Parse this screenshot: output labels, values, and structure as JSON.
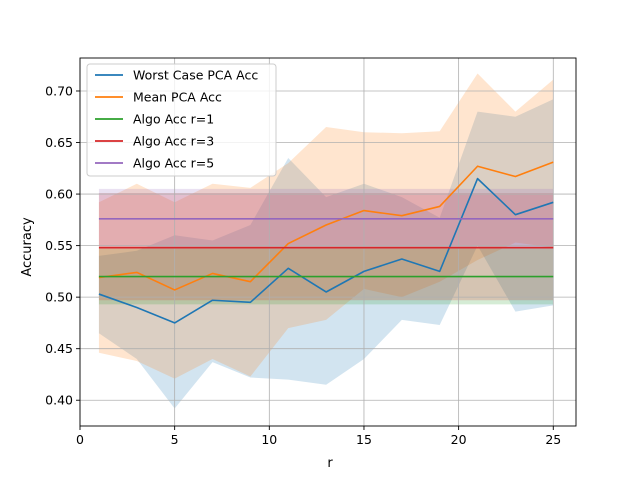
{
  "chart_data": {
    "type": "line",
    "xlabel": "r",
    "ylabel": "Accuracy",
    "xlim": [
      0,
      26.2
    ],
    "ylim": [
      0.375,
      0.732
    ],
    "xticks": [
      0,
      5,
      10,
      15,
      20,
      25
    ],
    "yticks": [
      0.4,
      0.45,
      0.5,
      0.55,
      0.6,
      0.65,
      0.7
    ],
    "grid": true,
    "legend_position": "top-left",
    "x": [
      1,
      3,
      5,
      7,
      9,
      11,
      13,
      15,
      17,
      19,
      21,
      23,
      25
    ],
    "series": [
      {
        "name": "Worst Case PCA Acc",
        "color": "#1f77b4",
        "values": [
          0.503,
          0.49,
          0.475,
          0.497,
          0.495,
          0.528,
          0.505,
          0.525,
          0.537,
          0.525,
          0.615,
          0.58,
          0.592
        ],
        "band_lower": [
          0.465,
          0.44,
          0.392,
          0.437,
          0.422,
          0.42,
          0.415,
          0.44,
          0.478,
          0.473,
          0.55,
          0.486,
          0.492
        ],
        "band_upper": [
          0.54,
          0.545,
          0.56,
          0.555,
          0.57,
          0.635,
          0.597,
          0.61,
          0.597,
          0.577,
          0.68,
          0.675,
          0.692
        ]
      },
      {
        "name": "Mean PCA Acc",
        "color": "#ff7f0e",
        "values": [
          0.519,
          0.524,
          0.507,
          0.523,
          0.515,
          0.552,
          0.57,
          0.584,
          0.579,
          0.588,
          0.627,
          0.617,
          0.631
        ],
        "band_lower": [
          0.446,
          0.438,
          0.421,
          0.44,
          0.423,
          0.47,
          0.478,
          0.508,
          0.5,
          0.515,
          0.536,
          0.553,
          0.548
        ],
        "band_upper": [
          0.592,
          0.61,
          0.592,
          0.61,
          0.606,
          0.63,
          0.665,
          0.66,
          0.659,
          0.661,
          0.717,
          0.68,
          0.711
        ]
      },
      {
        "name": "Algo Acc r=1",
        "color": "#2ca02c",
        "values": [
          0.52,
          0.52,
          0.52,
          0.52,
          0.52,
          0.52,
          0.52,
          0.52,
          0.52,
          0.52,
          0.52,
          0.52,
          0.52
        ],
        "band_lower": [
          0.493,
          0.493,
          0.493,
          0.493,
          0.493,
          0.493,
          0.493,
          0.493,
          0.493,
          0.493,
          0.493,
          0.493,
          0.493
        ],
        "band_upper": [
          0.547,
          0.547,
          0.547,
          0.547,
          0.547,
          0.547,
          0.547,
          0.547,
          0.547,
          0.547,
          0.547,
          0.547,
          0.547
        ]
      },
      {
        "name": "Algo Acc r=3",
        "color": "#d62728",
        "values": [
          0.548,
          0.548,
          0.548,
          0.548,
          0.548,
          0.548,
          0.548,
          0.548,
          0.548,
          0.548,
          0.548,
          0.548,
          0.548
        ],
        "band_lower": [
          0.497,
          0.497,
          0.497,
          0.497,
          0.497,
          0.497,
          0.497,
          0.497,
          0.497,
          0.497,
          0.497,
          0.497,
          0.497
        ],
        "band_upper": [
          0.601,
          0.601,
          0.601,
          0.601,
          0.601,
          0.601,
          0.601,
          0.601,
          0.601,
          0.601,
          0.601,
          0.601,
          0.601
        ]
      },
      {
        "name": "Algo Acc r=5",
        "color": "#9467bd",
        "values": [
          0.576,
          0.576,
          0.576,
          0.576,
          0.576,
          0.576,
          0.576,
          0.576,
          0.576,
          0.576,
          0.576,
          0.576,
          0.576
        ],
        "band_lower": [
          0.547,
          0.547,
          0.547,
          0.547,
          0.547,
          0.547,
          0.547,
          0.547,
          0.547,
          0.547,
          0.547,
          0.547,
          0.547
        ],
        "band_upper": [
          0.605,
          0.605,
          0.605,
          0.605,
          0.605,
          0.605,
          0.605,
          0.605,
          0.605,
          0.605,
          0.605,
          0.605,
          0.605
        ]
      }
    ]
  }
}
